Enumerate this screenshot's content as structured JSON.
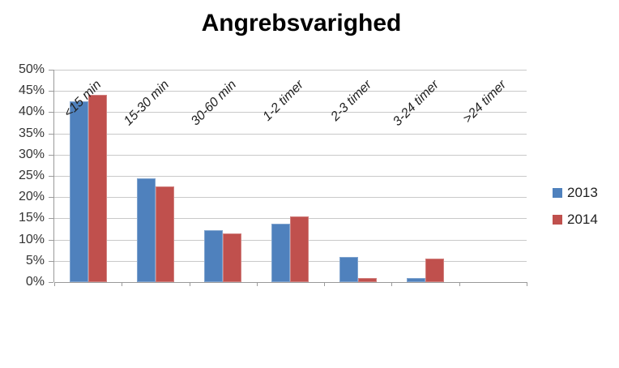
{
  "chart_data": {
    "type": "bar",
    "title": "Angrebsvarighed",
    "categories": [
      "<15 min",
      "15-30 min",
      "30-60 min",
      "1-2 timer",
      "2-3 timer",
      "3-24 timer",
      ">24 timer"
    ],
    "series": [
      {
        "name": "2013",
        "color": "#4F81BD",
        "values": [
          42.5,
          24.5,
          12.3,
          13.8,
          6,
          1,
          0
        ]
      },
      {
        "name": "2014",
        "color": "#C0504D",
        "values": [
          44,
          22.5,
          11.5,
          15.4,
          1,
          5.5,
          0
        ]
      }
    ],
    "xlabel": "",
    "ylabel": "",
    "ylim": [
      0,
      50
    ],
    "ytick_step": 5,
    "ytick_labels": [
      "50%",
      "45%",
      "40%",
      "35%",
      "30%",
      "25%",
      "20%",
      "15%",
      "10%",
      "5%",
      "0%"
    ],
    "grid": true,
    "legend_position": "right",
    "colors": {
      "gridline": "#c9c9c9",
      "axis": "#9a9a9a",
      "series_2013": "#4F81BD",
      "series_2014": "#C0504D"
    }
  }
}
